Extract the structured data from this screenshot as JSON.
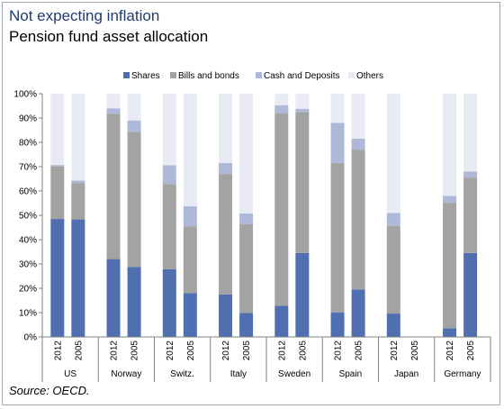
{
  "title": "Not expecting inflation",
  "subtitle": "Pension fund asset allocation",
  "source": "Source: OECD.",
  "chart_data": {
    "type": "bar",
    "stacked": true,
    "grid": false,
    "legend_position": "top",
    "ylim": [
      0,
      100
    ],
    "yticks": [
      "0%",
      "10%",
      "20%",
      "30%",
      "40%",
      "50%",
      "60%",
      "70%",
      "80%",
      "90%",
      "100%"
    ],
    "groups": [
      {
        "name": "US",
        "years": [
          "2012",
          "2005"
        ]
      },
      {
        "name": "Norway",
        "years": [
          "2012",
          "2005"
        ]
      },
      {
        "name": "Switz.",
        "years": [
          "2012",
          "2005"
        ]
      },
      {
        "name": "Italy",
        "years": [
          "2012",
          "2005"
        ]
      },
      {
        "name": "Sweden",
        "years": [
          "2012",
          "2005"
        ]
      },
      {
        "name": "Spain",
        "years": [
          "2012",
          "2005"
        ]
      },
      {
        "name": "Japan",
        "years": [
          "2012",
          "2005"
        ]
      },
      {
        "name": "Germany",
        "years": [
          "2012",
          "2005"
        ]
      }
    ],
    "series": [
      {
        "name": "Shares",
        "color": "#4f6fb0",
        "values": [
          [
            48.5,
            48.3
          ],
          [
            32.0,
            28.8
          ],
          [
            27.8,
            18.0
          ],
          [
            17.5,
            9.8
          ],
          [
            12.8,
            34.5
          ],
          [
            10.0,
            19.5
          ],
          [
            9.6,
            null
          ],
          [
            3.5,
            34.5
          ]
        ]
      },
      {
        "name": "Bills and bonds",
        "color": "#a3a3a3",
        "values": [
          [
            21.5,
            15.0
          ],
          [
            59.7,
            55.5
          ],
          [
            35.0,
            27.5
          ],
          [
            49.5,
            36.5
          ],
          [
            79.2,
            58.0
          ],
          [
            61.5,
            57.5
          ],
          [
            36.0,
            null
          ],
          [
            51.5,
            31.0
          ]
        ]
      },
      {
        "name": "Cash and Deposits",
        "color": "#aeb8d8",
        "values": [
          [
            0.7,
            1.0
          ],
          [
            2.3,
            4.7
          ],
          [
            7.8,
            8.2
          ],
          [
            4.5,
            4.5
          ],
          [
            3.3,
            1.2
          ],
          [
            16.5,
            4.5
          ],
          [
            5.4,
            null
          ],
          [
            3.0,
            2.5
          ]
        ]
      },
      {
        "name": "Others",
        "color": "#e9ebf4",
        "values": [
          [
            29.3,
            35.7
          ],
          [
            6.0,
            11.0
          ],
          [
            29.4,
            46.3
          ],
          [
            28.5,
            49.2
          ],
          [
            4.7,
            6.3
          ],
          [
            12.0,
            18.5
          ],
          [
            49.0,
            null
          ],
          [
            42.0,
            32.0
          ]
        ]
      }
    ]
  }
}
